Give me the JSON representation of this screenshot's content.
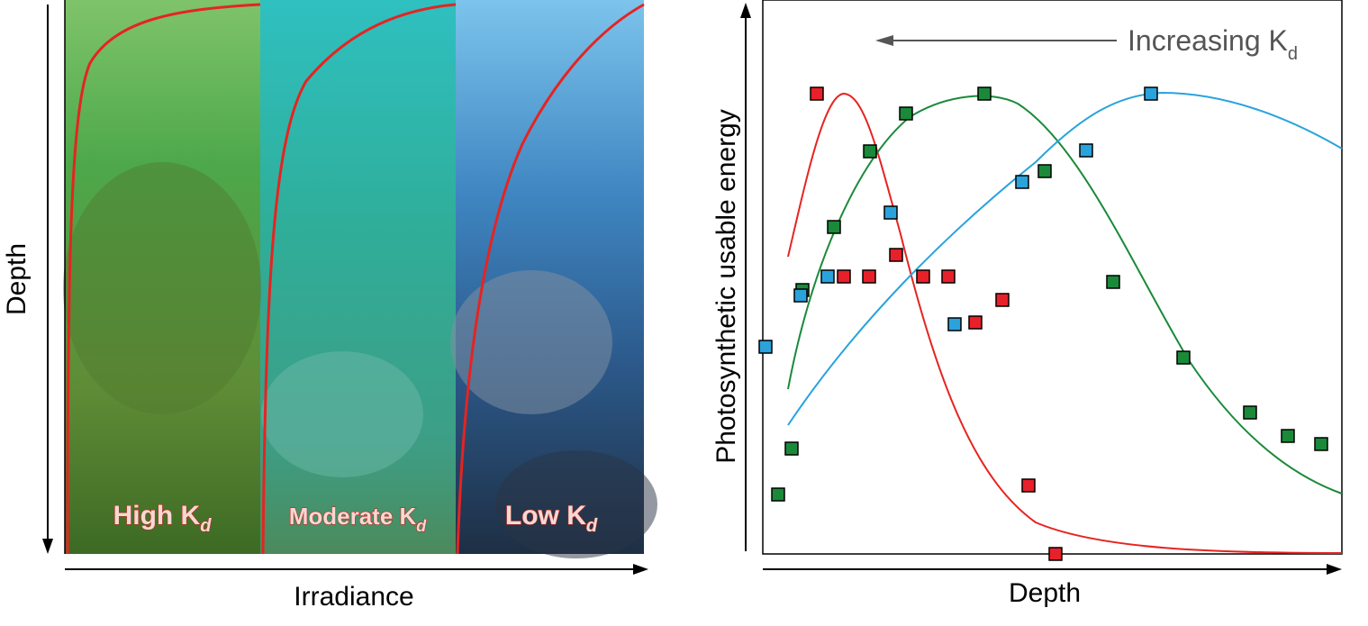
{
  "left_panel": {
    "y_axis_label": "Depth",
    "x_axis_label": "Irradiance",
    "panels": [
      {
        "label": "High K",
        "subscript": "d"
      },
      {
        "label": "Moderate K",
        "subscript": "d"
      },
      {
        "label": "Low K",
        "subscript": "d"
      }
    ]
  },
  "right_panel": {
    "y_axis_label": "Photosynthetic usable energy",
    "x_axis_label": "Depth",
    "annotation": {
      "text": "Increasing K",
      "subscript": "d"
    }
  }
}
